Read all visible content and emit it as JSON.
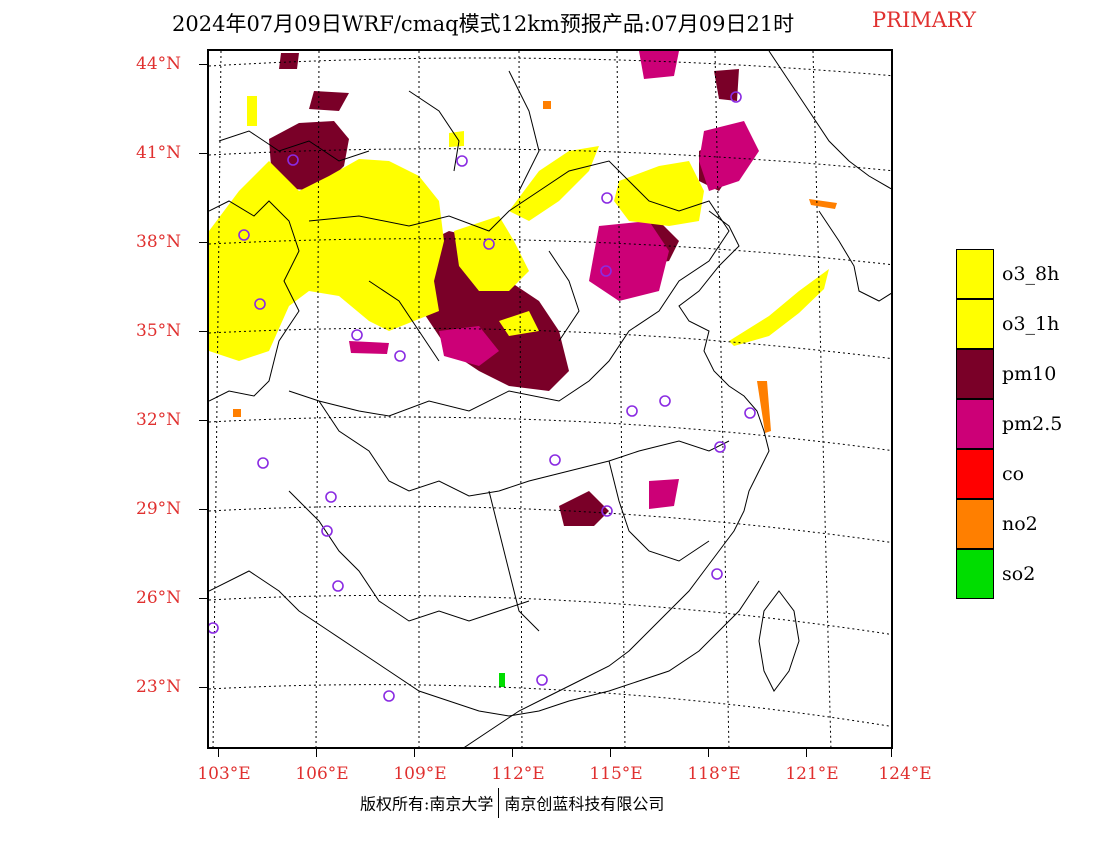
{
  "title": {
    "main": "2024年07月09日WRF/cmaq模式12km预报产品:07月09日21时",
    "tag": "PRIMARY"
  },
  "latitudes": [
    "44°N",
    "41°N",
    "38°N",
    "35°N",
    "32°N",
    "29°N",
    "26°N",
    "23°N"
  ],
  "longitudes": [
    "103°E",
    "106°E",
    "109°E",
    "112°E",
    "115°E",
    "118°E",
    "121°E",
    "124°E"
  ],
  "legend": [
    {
      "label": "o3_8h",
      "color": "#ffff00"
    },
    {
      "label": "o3_1h",
      "color": "#ffff00"
    },
    {
      "label": "pm10",
      "color": "#7a0028"
    },
    {
      "label": "pm2.5",
      "color": "#cc0077"
    },
    {
      "label": "co",
      "color": "#ff0000"
    },
    {
      "label": "no2",
      "color": "#ff7f00"
    },
    {
      "label": "so2",
      "color": "#00dd00"
    }
  ],
  "footer": {
    "left": "版权所有:南京大学",
    "right": "南京创蓝科技有限公司"
  },
  "colors": {
    "accent": "#e0302f",
    "o3": "#ffff00",
    "pm10": "#7a0028",
    "pm25": "#cc0077",
    "no2": "#ff7f00",
    "so2": "#00dd00",
    "station": "#8a2be2"
  }
}
